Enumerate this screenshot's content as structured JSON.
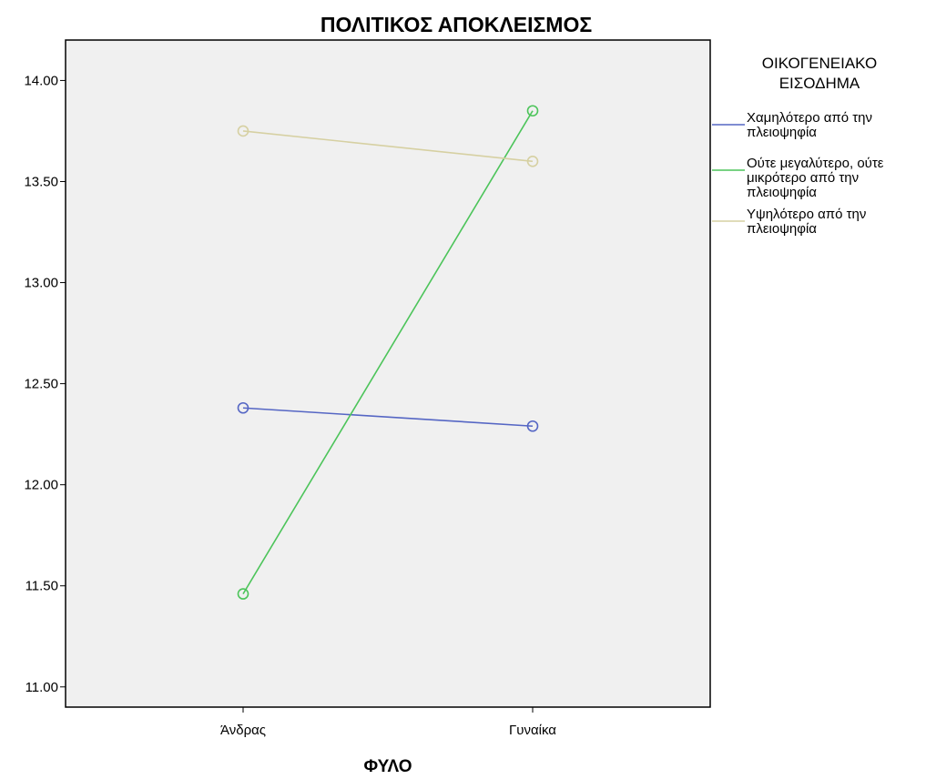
{
  "chart_data": {
    "type": "line",
    "title": "ΠΟΛΙΤΙΚΟΣ ΑΠΟΚΛΕΙΣΜΟΣ",
    "xlabel": "ΦΥΛΟ",
    "ylabel": "",
    "categories": [
      "Άνδρας",
      "Γυναίκα"
    ],
    "ylim": [
      10.9,
      14.2
    ],
    "yticks": [
      "11.00",
      "11.50",
      "12.00",
      "12.50",
      "13.00",
      "13.50",
      "14.00"
    ],
    "grid": false,
    "legend": {
      "title_lines": [
        "ΟΙΚΟΓΕΝΕΙΑΚΟ",
        "ΕΙΣΟΔΗΜΑ"
      ],
      "placement": "right"
    },
    "series": [
      {
        "name": "Χαμηλότερο από την πλειοψηφία",
        "label_lines": [
          "Χαμηλότερο από την",
          "πλειοψηφία"
        ],
        "values": [
          12.38,
          12.29
        ],
        "color": "#5566c4"
      },
      {
        "name": "Ούτε μεγαλύτερο, ούτε μικρότερο από την πλειοψηφία",
        "label_lines": [
          "Ούτε μεγαλύτερο, ούτε",
          "μικρότερο από την",
          "πλειοψηφία"
        ],
        "values": [
          11.46,
          13.85
        ],
        "color": "#4cc45a"
      },
      {
        "name": "Υψηλότερο από την πλειοψηφία",
        "label_lines": [
          "Υψηλότερο από την",
          "πλειοψηφία"
        ],
        "values": [
          13.75,
          13.6
        ],
        "color": "#d6d0a2"
      }
    ],
    "plot_background": "#f0f0f0"
  }
}
